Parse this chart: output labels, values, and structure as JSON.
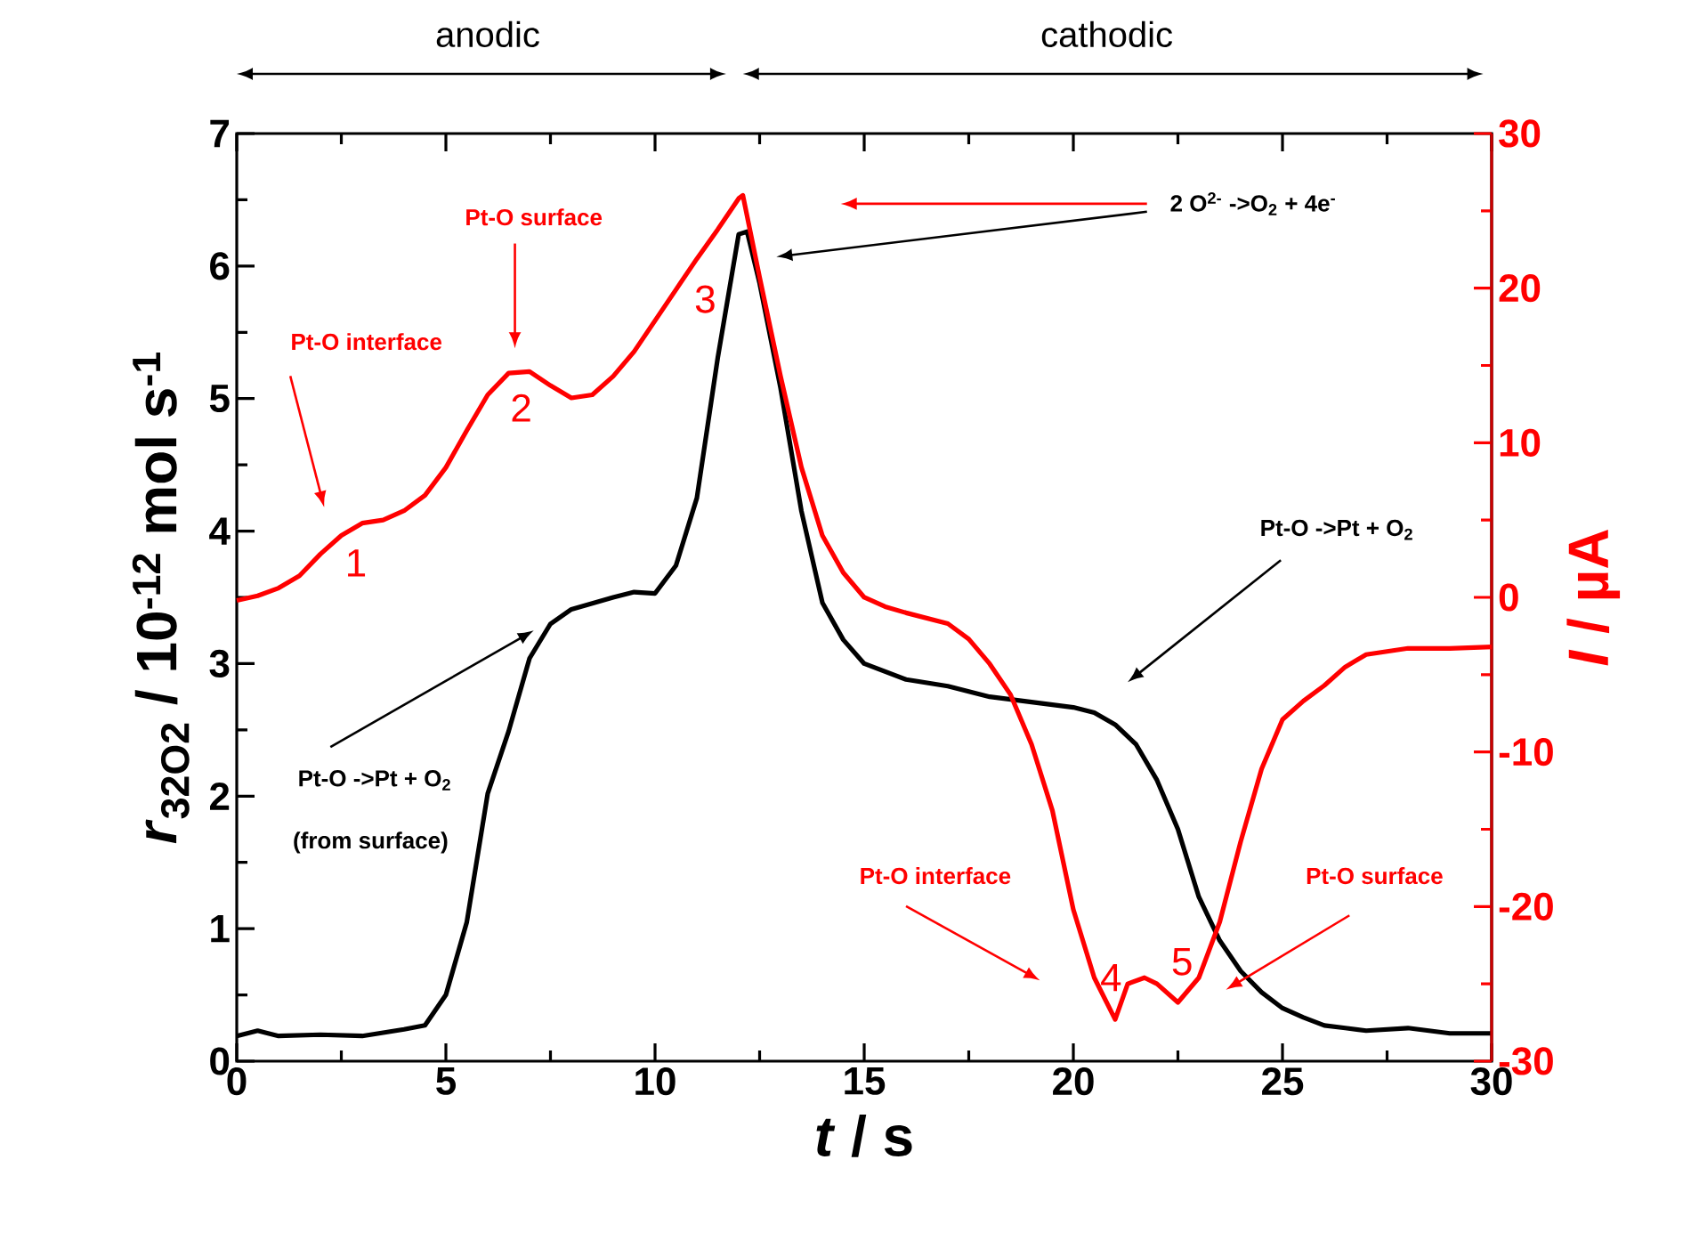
{
  "chart_data": {
    "type": "line",
    "xlabel": "*t* / s",
    "ylabel": "*r*$_{32O2}$ / 10$^{-12}$ mol s$^{-1}$",
    "y2label": "*I* / µA",
    "xlim": [
      0,
      30
    ],
    "xticks": [
      0,
      5,
      10,
      15,
      20,
      25,
      30
    ],
    "ylim": [
      0,
      7
    ],
    "yticks": [
      0,
      1,
      2,
      3,
      4,
      5,
      6,
      7
    ],
    "y2lim": [
      -30,
      30
    ],
    "y2ticks": [
      -30,
      -20,
      -10,
      0,
      10,
      20,
      30
    ],
    "marker": "none",
    "series": [
      {
        "color": "#000000",
        "x": [
          0,
          0.5,
          1,
          2,
          3,
          4,
          4.5,
          5,
          5.5,
          6,
          6.5,
          7,
          7.5,
          8,
          9,
          9.5,
          10,
          10.5,
          11,
          11.5,
          12,
          12.2,
          12.5,
          13,
          13.5,
          14,
          14.5,
          15,
          16,
          17,
          18,
          19,
          20,
          20.5,
          21,
          21.5,
          22,
          22.5,
          23,
          23.5,
          24,
          24.5,
          25,
          25.5,
          26,
          26.5,
          27,
          28,
          29,
          30
        ],
        "values": [
          0.19,
          0.23,
          0.19,
          0.2,
          0.19,
          0.24,
          0.27,
          0.5,
          1.05,
          2.02,
          2.49,
          3.04,
          3.3,
          3.41,
          3.5,
          3.54,
          3.53,
          3.74,
          4.25,
          5.31,
          6.24,
          6.26,
          5.87,
          5.08,
          4.15,
          3.46,
          3.18,
          3.0,
          2.88,
          2.83,
          2.75,
          2.71,
          2.67,
          2.63,
          2.54,
          2.39,
          2.12,
          1.75,
          1.24,
          0.91,
          0.68,
          0.52,
          0.4,
          0.33,
          0.27,
          0.25,
          0.23,
          0.25,
          0.21,
          0.21
        ]
      },
      {
        "color": "#ff0000",
        "axis": "y2",
        "x": [
          0,
          0.5,
          1,
          1.5,
          2,
          2.5,
          3,
          3.5,
          4,
          4.5,
          5,
          5.5,
          6,
          6.5,
          7,
          7.5,
          8,
          8.5,
          9,
          9.5,
          10,
          10.5,
          11,
          11.5,
          12,
          12.1,
          12.5,
          13,
          13.5,
          14,
          14.5,
          15,
          15.5,
          16,
          17,
          17.5,
          18,
          18.5,
          19,
          19.5,
          20,
          20.5,
          21,
          21.3,
          21.7,
          22,
          22.5,
          23,
          23.5,
          24,
          24.5,
          25,
          25.5,
          26,
          26.5,
          27,
          28,
          29,
          30
        ],
        "values": [
          -0.2,
          0.1,
          0.6,
          1.4,
          2.8,
          4.0,
          4.8,
          5.0,
          5.6,
          6.6,
          8.4,
          10.8,
          13.1,
          14.5,
          14.6,
          13.7,
          12.9,
          13.1,
          14.3,
          15.9,
          17.9,
          19.9,
          21.9,
          23.8,
          25.8,
          26.0,
          20.7,
          14.3,
          8.4,
          4.0,
          1.6,
          0.0,
          -0.6,
          -1.0,
          -1.7,
          -2.7,
          -4.3,
          -6.3,
          -9.5,
          -13.8,
          -20.2,
          -24.6,
          -27.3,
          -25.0,
          -24.6,
          -25.0,
          -26.2,
          -24.6,
          -21.0,
          -15.8,
          -11.1,
          -7.9,
          -6.7,
          -5.7,
          -4.5,
          -3.7,
          -3.3,
          -3.3,
          -3.2
        ]
      }
    ],
    "annotations": [
      "anodic",
      "cathodic",
      "Pt-O interface",
      "Pt-O surface",
      "1",
      "2",
      "3",
      "2 O$^{2-}$ ->O$_{2}$ + 4e$^{-}$",
      "Pt-O ->Pt + O$_{2}$",
      "Pt-O ->Pt + O$_{2}$",
      "(from surface)",
      "Pt-O interface",
      "Pt-O surface",
      "4",
      "5"
    ]
  }
}
